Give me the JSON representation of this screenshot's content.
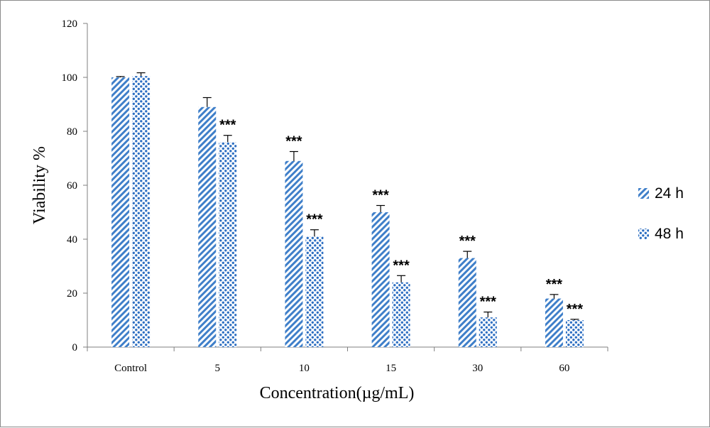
{
  "chart_data": {
    "type": "bar",
    "categories": [
      "Control",
      "5",
      "10",
      "15",
      "30",
      "60"
    ],
    "series": [
      {
        "name": "24 h",
        "pattern": "diagonal-hatch",
        "color": "#3f7fc9",
        "values": [
          100,
          89,
          69,
          50,
          33,
          18
        ],
        "errors": [
          0.3,
          3.5,
          3.5,
          2.5,
          2.5,
          1.5
        ],
        "annotations": [
          "",
          "",
          "***",
          "***",
          "***",
          "***"
        ]
      },
      {
        "name": "48 h",
        "pattern": "dots",
        "color": "#2e6fc2",
        "values": [
          100.5,
          76,
          41,
          24,
          11,
          10
        ],
        "errors": [
          1.2,
          2.5,
          2.5,
          2.5,
          2,
          0.3
        ],
        "annotations": [
          "",
          "***",
          "***",
          "***",
          "***",
          "***"
        ]
      }
    ],
    "title": "",
    "xlabel": "Concentration(µg/mL)",
    "ylabel": "Viability %",
    "ylim": [
      0,
      120
    ],
    "yticks": [
      "0",
      "20",
      "40",
      "60",
      "80",
      "100",
      "120"
    ],
    "grid": false,
    "legend_position": "right"
  }
}
